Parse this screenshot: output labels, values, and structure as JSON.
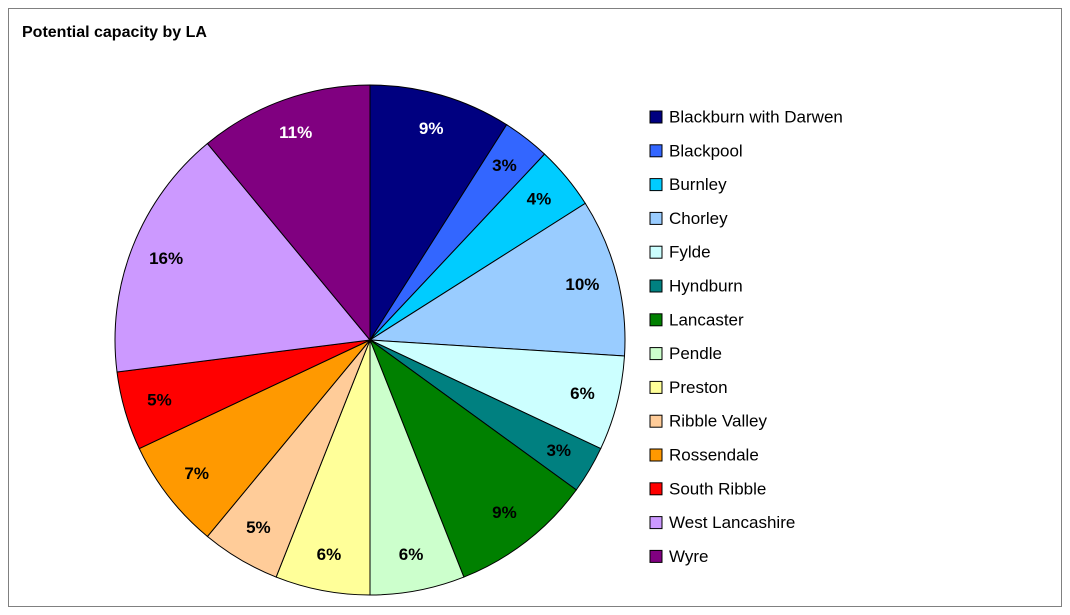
{
  "chart_data": {
    "type": "pie",
    "title": "Potential capacity by LA",
    "categories": [
      "Blackburn with Darwen",
      "Blackpool",
      "Burnley",
      "Chorley",
      "Fylde",
      "Hyndburn",
      "Lancaster",
      "Pendle",
      "Preston",
      "Ribble Valley",
      "Rossendale",
      "South Ribble",
      "West Lancashire",
      "Wyre"
    ],
    "values": [
      9,
      3,
      4,
      10,
      6,
      3,
      9,
      6,
      6,
      5,
      7,
      5,
      16,
      11
    ],
    "value_labels": [
      "9%",
      "3%",
      "4%",
      "10%",
      "6%",
      "3%",
      "9%",
      "6%",
      "6%",
      "5%",
      "7%",
      "5%",
      "16%",
      "11%"
    ],
    "colors": [
      "#000080",
      "#3366ff",
      "#00ccff",
      "#99ccff",
      "#ccffff",
      "#008080",
      "#008000",
      "#ccffcc",
      "#ffff99",
      "#ffcc99",
      "#ff9900",
      "#ff0000",
      "#cc99ff",
      "#800080"
    ],
    "legend": "right"
  }
}
